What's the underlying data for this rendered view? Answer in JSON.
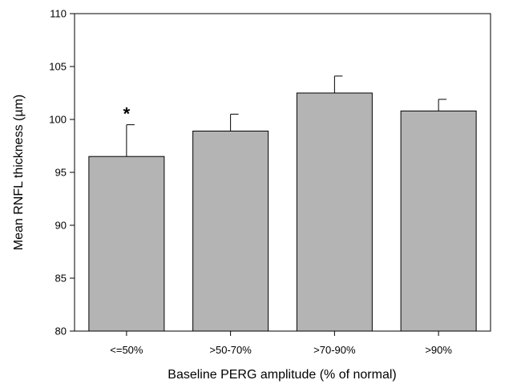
{
  "chart_data": {
    "type": "bar",
    "title": "",
    "xlabel": "Baseline PERG amplitude (% of normal)",
    "ylabel": "Mean RNFL thickness (µm)",
    "categories": [
      "<=50%",
      ">50-70%",
      ">70-90%",
      ">90%"
    ],
    "values": [
      96.5,
      98.9,
      102.5,
      100.8
    ],
    "error_upper": [
      3.0,
      1.6,
      1.6,
      1.1
    ],
    "annotations": [
      {
        "category_index": 0,
        "text": "*"
      }
    ],
    "ylim": [
      80,
      110
    ],
    "yticks": [
      80,
      85,
      90,
      95,
      100,
      105,
      110
    ],
    "grid": false,
    "legend": "none",
    "bar_color": "#b4b4b4",
    "bar_edge_color": "#000000"
  }
}
